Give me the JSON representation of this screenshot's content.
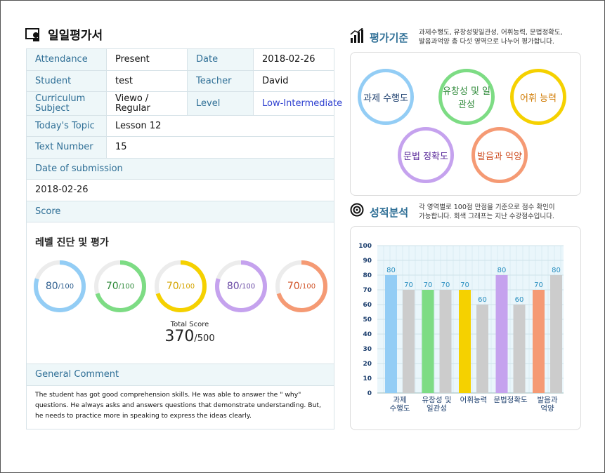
{
  "report_title": "일일평가서",
  "info": {
    "attendance_label": "Attendance",
    "attendance_value": "Present",
    "date_label": "Date",
    "date_value": "2018-02-26",
    "student_label": "Student",
    "student_value": "test",
    "teacher_label": "Teacher",
    "teacher_value": "David",
    "curriculum_label_1": "Curriculum",
    "curriculum_label_2": "Subject",
    "curriculum_value": "Viewo / Regular",
    "level_label": "Level",
    "level_value": "Low-Intermediate",
    "topic_label": "Today's Topic",
    "topic_value": "Lesson 12",
    "textnum_label": "Text Number",
    "textnum_value": "15",
    "submission_label": "Date of submission",
    "submission_value": "2018-02-26",
    "score_label": "Score"
  },
  "score": {
    "title": "레벨 진단 및 평가",
    "items": [
      {
        "value": "80",
        "max": "/100",
        "color": "#93cdf5",
        "text_color": "#2f5f8f",
        "fraction": 0.8
      },
      {
        "value": "70",
        "max": "/100",
        "color": "#7ddc84",
        "text_color": "#2f8a3a",
        "fraction": 0.7
      },
      {
        "value": "70",
        "max": "/100",
        "color": "#f5d100",
        "text_color": "#d4a400",
        "fraction": 0.7
      },
      {
        "value": "80",
        "max": "/100",
        "color": "#c5a2ee",
        "text_color": "#6a4aa5",
        "fraction": 0.8
      },
      {
        "value": "70",
        "max": "/100",
        "color": "#f59a74",
        "text_color": "#d0542a",
        "fraction": 0.7
      }
    ],
    "total_label": "Total Score",
    "total_value": "370",
    "total_max": "/500"
  },
  "comment": {
    "label": "General Comment",
    "text": "The student has got good comprehension skills. He was able to answer the \" why\" questions. He always asks and answers questions that demonstrate understanding. But, he needs to practice more in speaking to express the ideas clearly."
  },
  "criteria": {
    "title": "평가기준",
    "desc_1": "과제수행도, 유창성및일관성, 어휘능력, 문법정확도,",
    "desc_2": "발음과억양 총 다섯 영역으로 나누어 평가합니다.",
    "items": [
      {
        "label": "과제 수행도",
        "color": "#93cdf5",
        "text_color": "#1d3f6e"
      },
      {
        "label": "유창성 및 일관성",
        "color": "#7ddc84",
        "text_color": "#2f8a3a"
      },
      {
        "label": "어휘 능력",
        "color": "#f5d100",
        "text_color": "#d07a00"
      },
      {
        "label": "문법 정확도",
        "color": "#c5a2ee",
        "text_color": "#5a2a9a"
      },
      {
        "label": "발음과 억양",
        "color": "#f59a74",
        "text_color": "#d0542a"
      }
    ]
  },
  "analysis": {
    "title": "성적분석",
    "desc_1": "각 영역별로 100점 만점을 기준으로 점수 확인이",
    "desc_2": "가능합니다. 회색 그래프는 지난 수강점수입니다."
  },
  "chart_data": {
    "type": "bar",
    "categories": [
      "과제\n수행도",
      "유창성 및\n일관성",
      "어휘능력",
      "문법정확도",
      "발음과\n억양"
    ],
    "series": [
      {
        "values": [
          80,
          70,
          70,
          80,
          70
        ],
        "colors": [
          "#93cdf5",
          "#7ddc84",
          "#f5d100",
          "#c5a2ee",
          "#f59a74"
        ]
      },
      {
        "values": [
          70,
          70,
          60,
          60,
          80
        ],
        "color": "#cccccc"
      }
    ],
    "ylim": [
      0,
      100
    ],
    "yticks": [
      0,
      10,
      20,
      30,
      40,
      50,
      60,
      70,
      80,
      90,
      100
    ],
    "grid": true
  }
}
